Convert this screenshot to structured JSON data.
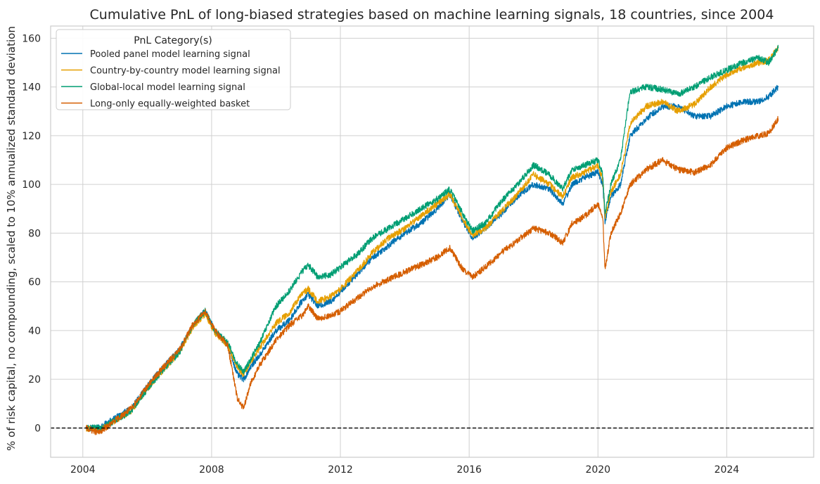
{
  "chart_data": {
    "type": "line",
    "title": "Cumulative PnL of long-biased strategies based on machine learning signals, 18 countries, since 2004",
    "xlabel": "",
    "ylabel": "% of risk capital, no compounding, scaled to 10% annualized standard deviation",
    "xlim": [
      2003.0,
      2026.7
    ],
    "ylim": [
      -12,
      165
    ],
    "x_ticks": [
      2004,
      2008,
      2012,
      2016,
      2020,
      2024
    ],
    "x_tick_labels": [
      "2004",
      "2008",
      "2012",
      "2016",
      "2020",
      "2024"
    ],
    "y_ticks": [
      0,
      20,
      40,
      60,
      80,
      100,
      120,
      140,
      160
    ],
    "y_tick_labels": [
      "0",
      "20",
      "40",
      "60",
      "80",
      "100",
      "120",
      "140",
      "160"
    ],
    "grid": true,
    "zero_line": {
      "y": 0,
      "style": "dashed",
      "color": "#000000"
    },
    "legend": {
      "title": "PnL Category(s)",
      "position": "top-left"
    },
    "x": [
      2004.1,
      2004.5,
      2005.0,
      2005.5,
      2006.0,
      2006.5,
      2007.0,
      2007.4,
      2007.8,
      2008.1,
      2008.5,
      2008.8,
      2009.0,
      2009.2,
      2009.5,
      2010.0,
      2010.4,
      2010.8,
      2011.0,
      2011.3,
      2011.7,
      2012.0,
      2012.5,
      2013.0,
      2013.5,
      2014.0,
      2014.5,
      2015.0,
      2015.4,
      2015.8,
      2016.1,
      2016.5,
      2017.0,
      2017.5,
      2018.0,
      2018.5,
      2018.9,
      2019.2,
      2019.6,
      2020.0,
      2020.15,
      2020.22,
      2020.4,
      2020.7,
      2021.0,
      2021.5,
      2022.0,
      2022.5,
      2023.0,
      2023.5,
      2024.0,
      2024.5,
      2025.0,
      2025.3,
      2025.6
    ],
    "series": [
      {
        "name": "Pooled panel model learning signal",
        "color": "#0072b2",
        "values": [
          0,
          0,
          4,
          8,
          17,
          25,
          32,
          42,
          48,
          40,
          34,
          22,
          20,
          25,
          30,
          40,
          44,
          52,
          55,
          50,
          52,
          56,
          63,
          70,
          75,
          80,
          84,
          90,
          96,
          85,
          78,
          82,
          88,
          95,
          100,
          98,
          92,
          100,
          103,
          105,
          100,
          85,
          95,
          100,
          120,
          127,
          132,
          132,
          128,
          128,
          132,
          134,
          134,
          136,
          140
        ]
      },
      {
        "name": "Country-by-country model learning signal",
        "color": "#e69f00",
        "values": [
          0,
          -1,
          3,
          7,
          16,
          24,
          31,
          41,
          47,
          39,
          34,
          25,
          22,
          27,
          33,
          43,
          47,
          55,
          57,
          52,
          54,
          57,
          64,
          72,
          78,
          82,
          87,
          92,
          96,
          86,
          79,
          82,
          89,
          96,
          104,
          100,
          95,
          103,
          105,
          108,
          102,
          86,
          97,
          104,
          125,
          132,
          134,
          130,
          133,
          140,
          145,
          148,
          150,
          151,
          156
        ]
      },
      {
        "name": "Global-local model learning signal",
        "color": "#009e73",
        "values": [
          0,
          0,
          3,
          7,
          16,
          24,
          31,
          42,
          48,
          40,
          35,
          26,
          23,
          28,
          35,
          50,
          56,
          64,
          67,
          62,
          63,
          66,
          71,
          78,
          82,
          86,
          90,
          94,
          98,
          88,
          81,
          84,
          93,
          100,
          108,
          104,
          98,
          106,
          108,
          110,
          104,
          88,
          100,
          110,
          138,
          140,
          139,
          137,
          140,
          144,
          147,
          150,
          152,
          150,
          156
        ]
      },
      {
        "name": "Long-only equally-weighted basket",
        "color": "#d55e00",
        "values": [
          0,
          -2,
          3,
          8,
          17,
          25,
          32,
          42,
          48,
          40,
          34,
          12,
          8,
          18,
          26,
          36,
          42,
          46,
          50,
          45,
          46,
          48,
          53,
          58,
          61,
          64,
          67,
          70,
          74,
          65,
          62,
          66,
          72,
          77,
          82,
          80,
          76,
          84,
          87,
          92,
          86,
          65,
          80,
          88,
          100,
          106,
          110,
          106,
          105,
          108,
          115,
          118,
          120,
          121,
          127
        ]
      }
    ]
  }
}
